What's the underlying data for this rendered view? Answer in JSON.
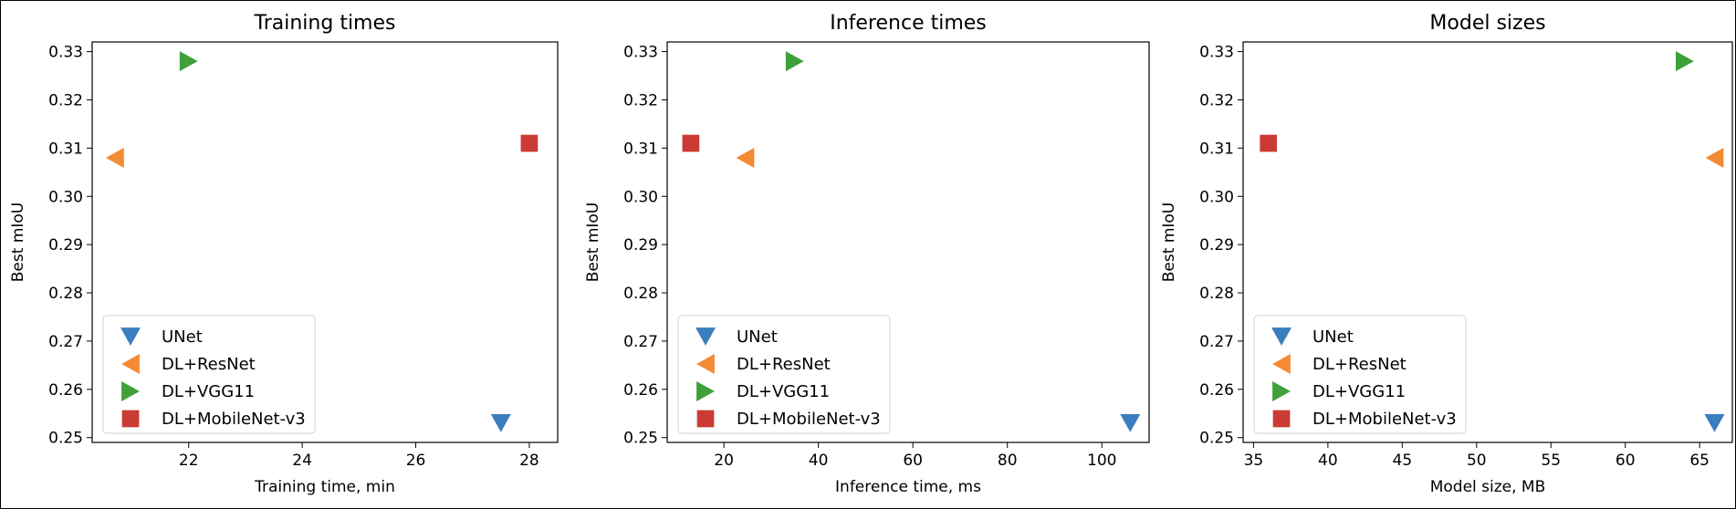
{
  "chart_data": [
    {
      "type": "scatter",
      "title": "Training times",
      "xlabel": "Training time, min",
      "ylabel": "Best mIoU",
      "xlim": [
        20.3,
        28.5
      ],
      "ylim": [
        0.249,
        0.332
      ],
      "xticks": [
        22,
        24,
        26,
        28
      ],
      "yticks": [
        0.25,
        0.26,
        0.27,
        0.28,
        0.29,
        0.3,
        0.31,
        0.32,
        0.33
      ],
      "legend": "lower-left",
      "series": [
        {
          "name": "UNet",
          "marker": "triangle-down",
          "color": "#3a7ebf",
          "x": [
            27.5
          ],
          "y": [
            0.253
          ]
        },
        {
          "name": "DL+ResNet",
          "marker": "triangle-left",
          "color": "#f58a34",
          "x": [
            20.7
          ],
          "y": [
            0.308
          ]
        },
        {
          "name": "DL+VGG11",
          "marker": "triangle-right",
          "color": "#3fa03a",
          "x": [
            22.0
          ],
          "y": [
            0.328
          ]
        },
        {
          "name": "DL+MobileNet-v3",
          "marker": "square",
          "color": "#cc3a35",
          "x": [
            28.0
          ],
          "y": [
            0.311
          ]
        }
      ]
    },
    {
      "type": "scatter",
      "title": "Inference times",
      "xlabel": "Inference time, ms",
      "ylabel": "Best mIoU",
      "xlim": [
        8,
        110
      ],
      "ylim": [
        0.249,
        0.332
      ],
      "xticks": [
        20,
        40,
        60,
        80,
        100
      ],
      "yticks": [
        0.25,
        0.26,
        0.27,
        0.28,
        0.29,
        0.3,
        0.31,
        0.32,
        0.33
      ],
      "legend": "lower-left",
      "series": [
        {
          "name": "UNet",
          "marker": "triangle-down",
          "color": "#3a7ebf",
          "x": [
            106
          ],
          "y": [
            0.253
          ]
        },
        {
          "name": "DL+ResNet",
          "marker": "triangle-left",
          "color": "#f58a34",
          "x": [
            24.5
          ],
          "y": [
            0.308
          ]
        },
        {
          "name": "DL+VGG11",
          "marker": "triangle-right",
          "color": "#3fa03a",
          "x": [
            35
          ],
          "y": [
            0.328
          ]
        },
        {
          "name": "DL+MobileNet-v3",
          "marker": "square",
          "color": "#cc3a35",
          "x": [
            13
          ],
          "y": [
            0.311
          ]
        }
      ]
    },
    {
      "type": "scatter",
      "title": "Model sizes",
      "xlabel": "Model size, MB",
      "ylabel": "Best mIoU",
      "xlim": [
        34.3,
        67.2
      ],
      "ylim": [
        0.249,
        0.332
      ],
      "xticks": [
        35,
        40,
        45,
        50,
        55,
        60,
        65
      ],
      "yticks": [
        0.25,
        0.26,
        0.27,
        0.28,
        0.29,
        0.3,
        0.31,
        0.32,
        0.33
      ],
      "legend": "lower-left",
      "series": [
        {
          "name": "UNet",
          "marker": "triangle-down",
          "color": "#3a7ebf",
          "x": [
            66
          ],
          "y": [
            0.253
          ]
        },
        {
          "name": "DL+ResNet",
          "marker": "triangle-left",
          "color": "#f58a34",
          "x": [
            66
          ],
          "y": [
            0.308
          ]
        },
        {
          "name": "DL+VGG11",
          "marker": "triangle-right",
          "color": "#3fa03a",
          "x": [
            64
          ],
          "y": [
            0.328
          ]
        },
        {
          "name": "DL+MobileNet-v3",
          "marker": "square",
          "color": "#cc3a35",
          "x": [
            36
          ],
          "y": [
            0.311
          ]
        }
      ]
    }
  ]
}
